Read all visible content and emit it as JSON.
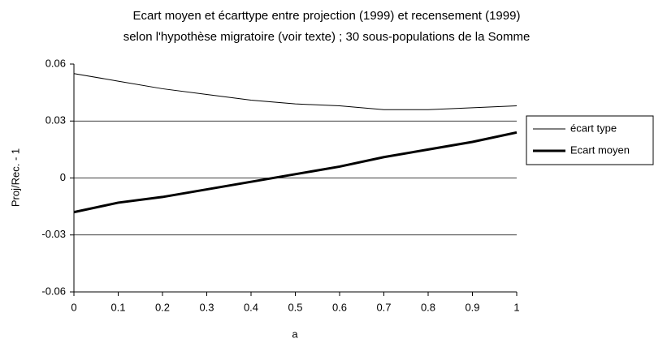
{
  "chart_data": {
    "type": "line",
    "title": "Ecart moyen et écarttype entre projection (1999) et recensement (1999)",
    "subtitle": "selon l'hypothèse migratoire (voir texte) ; 30 sous-populations de la Somme",
    "x_label": "a",
    "y_label": "Proj/Rec. - 1",
    "x": [
      0,
      0.1,
      0.2,
      0.3,
      0.4,
      0.5,
      0.6,
      0.7,
      0.8,
      0.9,
      1
    ],
    "series": [
      {
        "name": "écart type",
        "color": "#000000",
        "line_width": 1,
        "values": [
          0.055,
          0.051,
          0.047,
          0.044,
          0.041,
          0.039,
          0.038,
          0.036,
          0.036,
          0.037,
          0.038
        ]
      },
      {
        "name": "Ecart moyen",
        "color": "#000000",
        "line_width": 3,
        "values": [
          -0.018,
          -0.013,
          -0.01,
          -0.006,
          -0.002,
          0.002,
          0.006,
          0.011,
          0.015,
          0.019,
          0.024
        ]
      }
    ],
    "xlim": [
      0,
      1
    ],
    "xticks": [
      0,
      0.1,
      0.2,
      0.3,
      0.4,
      0.5,
      0.6,
      0.7,
      0.8,
      0.9,
      1
    ],
    "ylim": [
      -0.06,
      0.06
    ],
    "yticks": [
      0.06,
      0.03,
      0,
      -0.03,
      -0.06
    ],
    "grid": true,
    "legend": "right"
  }
}
